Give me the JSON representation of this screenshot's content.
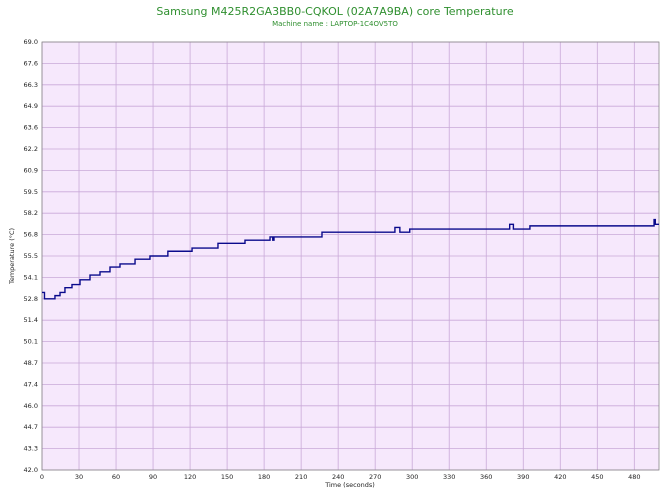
{
  "chart_data": {
    "type": "line",
    "title": "Samsung M425R2GA3BB0-CQKOL (02A7A9BA) core Temperature",
    "subtitle": "Machine name : LAPTOP-1C4OV5TO",
    "x_label": "Time (seconds)",
    "y_label": "Temperature (°C)",
    "color": "#0a0a8c",
    "grid": true,
    "xlim": [
      0,
      500
    ],
    "ylim": [
      42,
      69
    ],
    "xticks": [
      0,
      30,
      60,
      90,
      120,
      150,
      180,
      210,
      240,
      270,
      300,
      330,
      360,
      390,
      420,
      450,
      480
    ],
    "yticks": [
      {
        "value": 42,
        "label": "42.0"
      },
      {
        "value": 43.35,
        "label": "43.3"
      },
      {
        "value": 44.7,
        "label": "44.7"
      },
      {
        "value": 46.05,
        "label": "46.0"
      },
      {
        "value": 47.4,
        "label": "47.4"
      },
      {
        "value": 48.75,
        "label": "48.7"
      },
      {
        "value": 50.1,
        "label": "50.1"
      },
      {
        "value": 51.45,
        "label": "51.4"
      },
      {
        "value": 52.8,
        "label": "52.8"
      },
      {
        "value": 54.15,
        "label": "54.1"
      },
      {
        "value": 55.5,
        "label": "55.5"
      },
      {
        "value": 56.85,
        "label": "56.8"
      },
      {
        "value": 58.2,
        "label": "58.2"
      },
      {
        "value": 59.55,
        "label": "59.5"
      },
      {
        "value": 60.9,
        "label": "60.9"
      },
      {
        "value": 62.25,
        "label": "62.2"
      },
      {
        "value": 63.6,
        "label": "63.6"
      },
      {
        "value": 64.95,
        "label": "64.9"
      },
      {
        "value": 66.3,
        "label": "66.3"
      },
      {
        "value": 67.65,
        "label": "67.6"
      },
      {
        "value": 69,
        "label": "69.0"
      }
    ],
    "x": [
      0,
      2,
      2,
      10.5,
      10.5,
      14.6,
      14.6,
      18.6,
      18.6,
      24.3,
      24.3,
      30.8,
      30.8,
      38.9,
      38.9,
      47,
      47,
      55.1,
      55.1,
      63.2,
      63.2,
      75.4,
      75.4,
      87.5,
      87.5,
      102,
      102,
      121.6,
      121.6,
      142.6,
      142.6,
      164.5,
      164.5,
      184.8,
      184.8,
      187,
      187,
      188,
      188,
      226.9,
      226.9,
      286,
      286,
      290,
      290,
      298,
      298,
      379,
      379,
      382,
      382,
      395.4,
      395.4,
      496,
      496,
      497,
      497,
      500
    ],
    "values": [
      53.2,
      53.2,
      52.8,
      52.8,
      53.0,
      53.0,
      53.2,
      53.2,
      53.5,
      53.5,
      53.7,
      53.7,
      54.0,
      54.0,
      54.3,
      54.3,
      54.5,
      54.5,
      54.8,
      54.8,
      55.0,
      55.0,
      55.3,
      55.3,
      55.5,
      55.5,
      55.8,
      55.8,
      56.0,
      56.0,
      56.3,
      56.3,
      56.5,
      56.5,
      56.7,
      56.7,
      56.5,
      56.5,
      56.7,
      56.7,
      57.0,
      57.0,
      57.3,
      57.3,
      57.0,
      57.0,
      57.2,
      57.2,
      57.5,
      57.5,
      57.2,
      57.2,
      57.4,
      57.4,
      57.8,
      57.8,
      57.5,
      57.5
    ]
  }
}
